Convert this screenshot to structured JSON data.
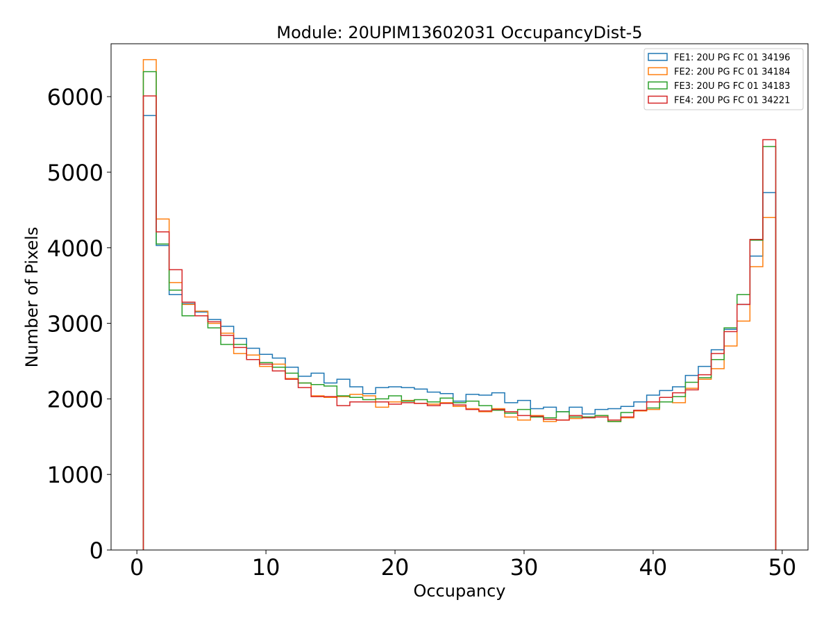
{
  "chart_data": {
    "type": "step",
    "title": "Module: 20UPIM13602031 OccupancyDist-5",
    "xlabel": "Occupancy",
    "ylabel": "Number of Pixels",
    "xlim": [
      -2,
      52
    ],
    "ylim": [
      0,
      6700
    ],
    "xticks": [
      0,
      10,
      20,
      30,
      40,
      50
    ],
    "yticks": [
      0,
      1000,
      2000,
      3000,
      4000,
      5000,
      6000
    ],
    "bin_start": 0.5,
    "bin_width": 1,
    "legend_position": "top-right",
    "series": [
      {
        "name": "FE1: 20U PG FC 01 34196",
        "color": "#1f77b4",
        "values": [
          5750,
          4030,
          3380,
          3260,
          3150,
          3050,
          2960,
          2800,
          2670,
          2590,
          2540,
          2420,
          2300,
          2340,
          2210,
          2260,
          2160,
          2070,
          2150,
          2160,
          2150,
          2130,
          2090,
          2070,
          1970,
          2060,
          2050,
          2080,
          1950,
          1980,
          1870,
          1890,
          1830,
          1890,
          1800,
          1860,
          1870,
          1900,
          1960,
          2050,
          2110,
          2160,
          2310,
          2430,
          2650,
          2920,
          3250,
          3890,
          4730
        ]
      },
      {
        "name": "FE2: 20U PG FC 01 34184",
        "color": "#ff7f0e",
        "values": [
          6490,
          4380,
          3540,
          3250,
          3160,
          3000,
          2870,
          2600,
          2580,
          2430,
          2460,
          2270,
          2210,
          2040,
          2020,
          2030,
          2060,
          2040,
          1890,
          1960,
          1980,
          1940,
          1930,
          1950,
          1900,
          1870,
          1830,
          1870,
          1760,
          1720,
          1780,
          1700,
          1720,
          1740,
          1760,
          1780,
          1700,
          1750,
          1840,
          1860,
          1960,
          1950,
          2140,
          2260,
          2400,
          2700,
          3030,
          3750,
          4400
        ]
      },
      {
        "name": "FE3: 20U PG FC 01 34183",
        "color": "#2ca02c",
        "values": [
          6330,
          4050,
          3440,
          3100,
          3100,
          2940,
          2720,
          2720,
          2520,
          2480,
          2420,
          2340,
          2210,
          2190,
          2170,
          2040,
          2020,
          1990,
          2000,
          2040,
          1970,
          1990,
          1960,
          2010,
          1950,
          1970,
          1910,
          1850,
          1810,
          1860,
          1760,
          1750,
          1830,
          1760,
          1760,
          1780,
          1700,
          1820,
          1850,
          1880,
          1960,
          2030,
          2220,
          2280,
          2520,
          2940,
          3380,
          4100,
          5340
        ]
      },
      {
        "name": "FE4: 20U PG FC 01 34221",
        "color": "#d62728",
        "values": [
          6010,
          4210,
          3710,
          3280,
          3100,
          3020,
          2840,
          2680,
          2520,
          2460,
          2370,
          2260,
          2150,
          2030,
          2030,
          1910,
          1960,
          1960,
          1960,
          1930,
          1950,
          1940,
          1910,
          1940,
          1920,
          1860,
          1840,
          1860,
          1830,
          1780,
          1770,
          1730,
          1720,
          1780,
          1750,
          1760,
          1720,
          1760,
          1850,
          1960,
          2020,
          2080,
          2120,
          2320,
          2600,
          2890,
          3250,
          4110,
          5430
        ]
      }
    ]
  }
}
